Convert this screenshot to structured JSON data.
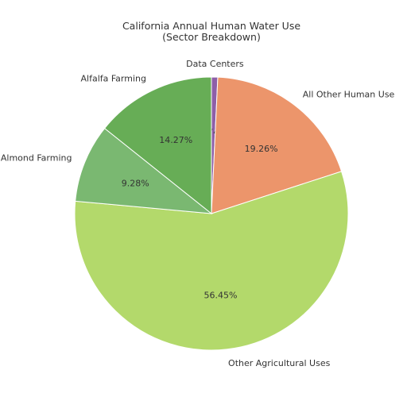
{
  "chart_data": {
    "type": "pie",
    "title_line_1": "California Annual Human Water Use",
    "title_line_2": "(Sector Breakdown)",
    "slices": [
      {
        "label": "Data Centers",
        "value": 0.74,
        "pct_text": "0.74%",
        "color": "#8e5fa8"
      },
      {
        "label": "All Other Human Use",
        "value": 19.26,
        "pct_text": "19.26%",
        "color": "#ec956b"
      },
      {
        "label": "Other Agricultural Uses",
        "value": 56.45,
        "pct_text": "56.45%",
        "color": "#b3d96b"
      },
      {
        "label": "Almond Farming",
        "value": 9.28,
        "pct_text": "9.28%",
        "color": "#7ab871"
      },
      {
        "label": "Alfalfa Farming",
        "value": 14.27,
        "pct_text": "14.27%",
        "color": "#67ad56"
      }
    ],
    "start_angle_deg": 90,
    "direction": "clockwise",
    "legend": "none"
  }
}
